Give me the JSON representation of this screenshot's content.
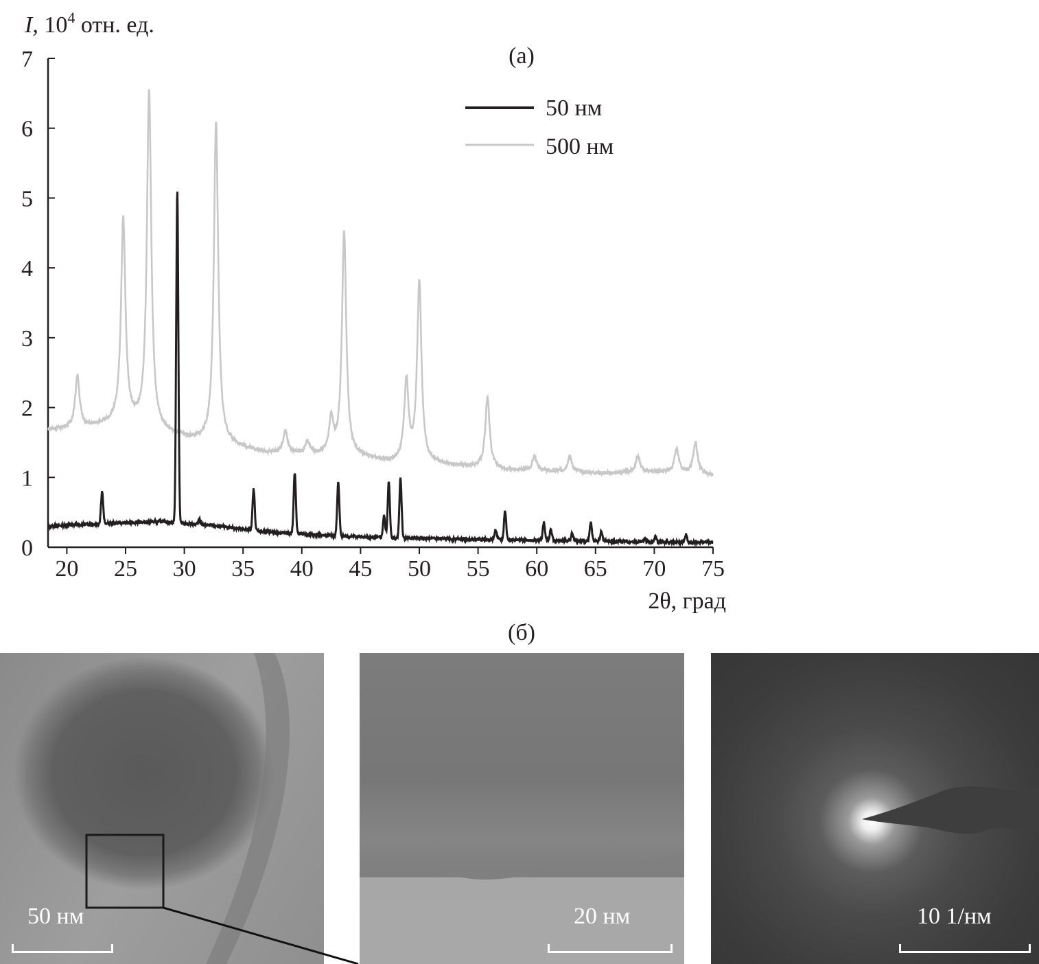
{
  "chart_data": {
    "type": "line",
    "panel_label": "(а)",
    "ylabel": "I, 10",
    "ylabel_exp": "4",
    "ylabel_unit": " отн. ед.",
    "xlabel": "2θ, град",
    "xlim": [
      18.4,
      75
    ],
    "ylim": [
      0,
      7
    ],
    "xticks": [
      20,
      25,
      30,
      35,
      40,
      45,
      50,
      55,
      60,
      65,
      70,
      75
    ],
    "yticks": [
      0,
      1,
      2,
      3,
      4,
      5,
      6,
      7
    ],
    "grid": false,
    "legend_position": "top-right",
    "series": [
      {
        "name": "50 нм",
        "color": "#231f20",
        "baseline": [
          [
            18.4,
            0.3
          ],
          [
            22,
            0.33
          ],
          [
            28,
            0.37
          ],
          [
            30,
            0.34
          ],
          [
            33,
            0.3
          ],
          [
            37,
            0.22
          ],
          [
            42,
            0.17
          ],
          [
            46,
            0.14
          ],
          [
            52,
            0.12
          ],
          [
            60,
            0.1
          ],
          [
            68,
            0.08
          ],
          [
            75,
            0.07
          ]
        ],
        "peaks": [
          [
            23.0,
            0.8
          ],
          [
            29.4,
            5.1
          ],
          [
            31.3,
            0.4
          ],
          [
            35.9,
            0.83
          ],
          [
            39.4,
            1.07
          ],
          [
            43.1,
            0.93
          ],
          [
            47.0,
            0.45
          ],
          [
            47.4,
            0.93
          ],
          [
            48.4,
            1.0
          ],
          [
            56.5,
            0.25
          ],
          [
            57.3,
            0.52
          ],
          [
            60.6,
            0.35
          ],
          [
            61.2,
            0.25
          ],
          [
            63.0,
            0.2
          ],
          [
            64.6,
            0.35
          ],
          [
            65.5,
            0.22
          ],
          [
            69.2,
            0.12
          ],
          [
            70.1,
            0.15
          ],
          [
            72.7,
            0.18
          ]
        ]
      },
      {
        "name": "500 нм",
        "color": "#c8c8c8",
        "baseline": [
          [
            18.4,
            1.68
          ],
          [
            22,
            1.72
          ],
          [
            25,
            1.8
          ],
          [
            26.5,
            1.72
          ],
          [
            29,
            1.6
          ],
          [
            31,
            1.52
          ],
          [
            34,
            1.45
          ],
          [
            37,
            1.35
          ],
          [
            41,
            1.32
          ],
          [
            45,
            1.28
          ],
          [
            47.5,
            1.22
          ],
          [
            52,
            1.18
          ],
          [
            55,
            1.14
          ],
          [
            58,
            1.1
          ],
          [
            62,
            1.08
          ],
          [
            66,
            1.06
          ],
          [
            70,
            1.08
          ],
          [
            75,
            1.03
          ]
        ],
        "peaks": [
          [
            20.9,
            2.45
          ],
          [
            24.8,
            4.7
          ],
          [
            27.0,
            6.55
          ],
          [
            32.7,
            6.1
          ],
          [
            38.6,
            1.65
          ],
          [
            40.5,
            1.5
          ],
          [
            42.5,
            1.8
          ],
          [
            43.6,
            4.5
          ],
          [
            48.9,
            2.35
          ],
          [
            50.0,
            3.8
          ],
          [
            55.8,
            2.15
          ],
          [
            59.8,
            1.3
          ],
          [
            62.8,
            1.3
          ],
          [
            68.6,
            1.3
          ],
          [
            71.9,
            1.4
          ],
          [
            73.5,
            1.5
          ]
        ]
      }
    ]
  },
  "images": {
    "panel_label": "(б)",
    "scale_bars": [
      "50 нм",
      "20 нм",
      "10 1/нм"
    ]
  }
}
